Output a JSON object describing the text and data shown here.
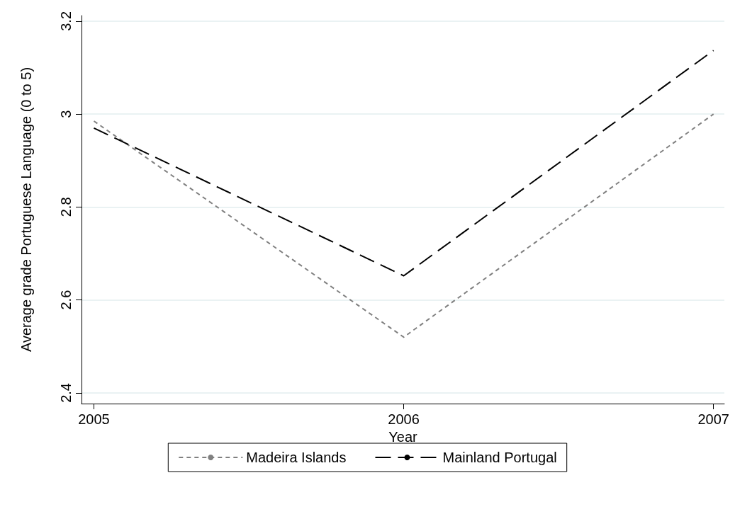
{
  "chart_data": {
    "type": "line",
    "xlabel": "Year",
    "ylabel": "Average grade Portuguese Language (0 to 5)",
    "x": [
      2005,
      2006,
      2007
    ],
    "series": [
      {
        "name": "Madeira Islands",
        "color": "#808080",
        "values": [
          2.985,
          2.52,
          3.0
        ],
        "line_style": "dotted"
      },
      {
        "name": "Mainland Portugal",
        "color": "#000000",
        "values": [
          2.97,
          2.652,
          3.137
        ],
        "line_style": "dashed"
      }
    ],
    "xlim": [
      2004.96,
      2007.035
    ],
    "xticks": [
      2005,
      2006,
      2007
    ],
    "ylim": [
      2.377,
      3.212
    ],
    "yticks": [
      2.4,
      2.6,
      2.8,
      3,
      3.2
    ],
    "grid": "y",
    "legend": "bottom",
    "marker": "none"
  }
}
